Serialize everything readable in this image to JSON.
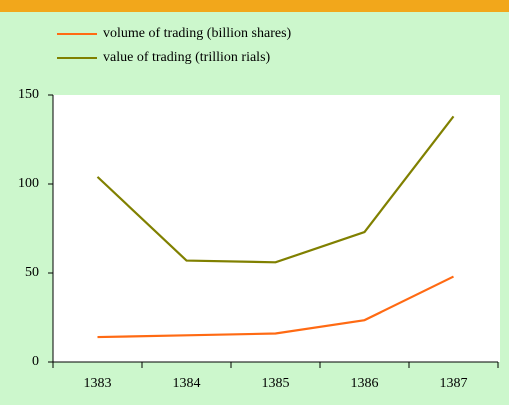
{
  "chart_data": {
    "type": "line",
    "categories": [
      "1383",
      "1384",
      "1385",
      "1386",
      "1387"
    ],
    "series": [
      {
        "name": "volume of trading (billion shares)",
        "color": "#ff6a13",
        "values": [
          14,
          15,
          16,
          23.5,
          48
        ]
      },
      {
        "name": "value of trading (trillion rials)",
        "color": "#808000",
        "values": [
          104,
          57,
          56,
          73,
          138
        ]
      }
    ],
    "ylim": [
      0,
      150
    ],
    "yticks": [
      0,
      50,
      100,
      150
    ],
    "grid": false
  }
}
